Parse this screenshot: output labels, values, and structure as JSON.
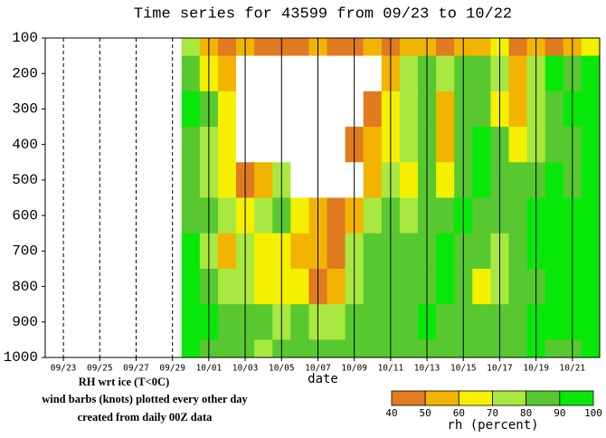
{
  "chart_data": {
    "type": "heatmap",
    "title": "Time series for 43599 from 09/23 to 10/22",
    "xlabel": "date",
    "notes": [
      "RH wrt ice (T<0C)",
      "wind barbs (knots) plotted every other day",
      "created from daily 00Z data"
    ],
    "colorbar_label": "rh (percent)",
    "categories": [
      null,
      "09/23",
      null,
      "09/25",
      null,
      "09/27",
      null,
      "09/29",
      null,
      "10/01",
      null,
      "10/03",
      null,
      "10/05",
      null,
      "10/07",
      null,
      "10/09",
      null,
      "10/11",
      null,
      "10/13",
      null,
      "10/15",
      null,
      "10/17",
      null,
      "10/19",
      null,
      "10/21",
      null
    ],
    "y": [
      100,
      200,
      300,
      400,
      500,
      600,
      700,
      800,
      900,
      1000
    ],
    "ylim": [
      100,
      1000
    ],
    "yticks": [
      100,
      200,
      300,
      400,
      500,
      600,
      700,
      800,
      900,
      1000
    ],
    "y_inverted": true,
    "levels": [
      40,
      50,
      60,
      70,
      80,
      90,
      100
    ],
    "colors": [
      "#e07b20",
      "#f2b400",
      "#f5f000",
      "#a8e840",
      "#58c830",
      "#08e808"
    ],
    "under_color": "#ffffff",
    "z": [
      [
        null,
        null,
        null,
        null,
        null,
        null,
        null,
        null,
        75,
        55,
        45,
        50,
        45,
        40,
        45,
        50,
        40,
        45,
        50,
        45,
        55,
        50,
        45,
        50,
        55,
        60,
        45,
        50,
        45,
        55,
        60
      ],
      [
        null,
        null,
        null,
        null,
        null,
        null,
        null,
        null,
        85,
        65,
        55,
        35,
        30,
        30,
        30,
        30,
        30,
        30,
        30,
        55,
        70,
        80,
        75,
        85,
        80,
        70,
        55,
        70,
        90,
        85,
        90
      ],
      [
        null,
        null,
        null,
        null,
        null,
        null,
        null,
        null,
        90,
        80,
        60,
        35,
        30,
        30,
        30,
        30,
        30,
        30,
        40,
        60,
        75,
        85,
        50,
        80,
        85,
        60,
        50,
        75,
        85,
        90,
        95
      ],
      [
        null,
        null,
        null,
        null,
        null,
        null,
        null,
        null,
        85,
        75,
        65,
        35,
        30,
        30,
        30,
        30,
        30,
        40,
        50,
        65,
        70,
        85,
        55,
        85,
        90,
        80,
        65,
        75,
        80,
        85,
        90
      ],
      [
        null,
        null,
        null,
        null,
        null,
        null,
        null,
        null,
        80,
        75,
        60,
        40,
        55,
        70,
        35,
        30,
        30,
        35,
        50,
        70,
        65,
        80,
        60,
        85,
        90,
        85,
        80,
        85,
        90,
        85,
        90
      ],
      [
        null,
        null,
        null,
        null,
        null,
        null,
        null,
        null,
        85,
        80,
        70,
        65,
        75,
        80,
        60,
        55,
        40,
        50,
        70,
        80,
        75,
        85,
        85,
        90,
        85,
        80,
        85,
        90,
        95,
        90,
        95
      ],
      [
        null,
        null,
        null,
        null,
        null,
        null,
        null,
        null,
        90,
        75,
        50,
        70,
        65,
        60,
        50,
        55,
        45,
        70,
        80,
        85,
        80,
        85,
        90,
        85,
        80,
        70,
        85,
        90,
        90,
        95,
        90
      ],
      [
        null,
        null,
        null,
        null,
        null,
        null,
        null,
        null,
        90,
        80,
        75,
        70,
        60,
        65,
        60,
        45,
        55,
        75,
        85,
        80,
        85,
        80,
        90,
        85,
        65,
        75,
        80,
        85,
        90,
        90,
        95
      ],
      [
        null,
        null,
        null,
        null,
        null,
        null,
        null,
        null,
        95,
        90,
        85,
        80,
        80,
        75,
        80,
        70,
        75,
        85,
        85,
        80,
        85,
        90,
        85,
        80,
        80,
        85,
        85,
        90,
        95,
        90,
        90
      ],
      [
        null,
        null,
        null,
        null,
        null,
        null,
        null,
        null,
        90,
        85,
        85,
        80,
        75,
        80,
        85,
        80,
        85,
        85,
        80,
        85,
        85,
        80,
        80,
        85,
        85,
        80,
        85,
        90,
        85,
        85,
        90
      ]
    ]
  }
}
